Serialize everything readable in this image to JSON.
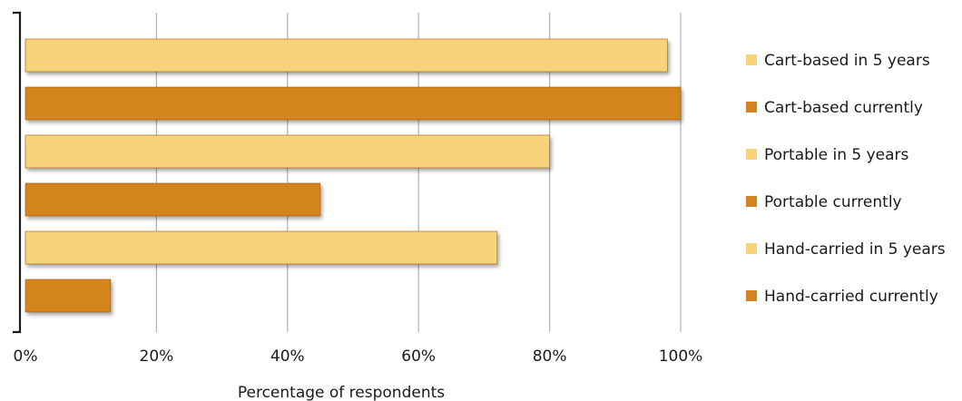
{
  "chart_data": {
    "type": "bar",
    "orientation": "horizontal",
    "categories": [
      "Cart-based in 5 years",
      "Cart-based currently",
      "Portable in 5 years",
      "Portable currently",
      "Hand-carried in 5 years",
      "Hand-carried currently"
    ],
    "values": [
      98,
      100,
      80,
      45,
      72,
      13
    ],
    "xlim": [
      0,
      100
    ],
    "xticks": [
      0,
      20,
      40,
      60,
      80,
      100
    ],
    "xtick_labels": [
      "0%",
      "20%",
      "40%",
      "60%",
      "80%",
      "100%"
    ],
    "xlabel": "Percentage of respondents",
    "ylabel": "",
    "title": "",
    "grid": "vertical",
    "legend_placement": "right",
    "legend": [
      {
        "label": "Cart-based in 5 years",
        "color": "#F7D47B"
      },
      {
        "label": "Cart-based currently",
        "color": "#D4841F"
      },
      {
        "label": "Portable in 5 years",
        "color": "#F7D47B"
      },
      {
        "label": "Portable currently",
        "color": "#D4841F"
      },
      {
        "label": "Hand-carried in 5 years",
        "color": "#F7D47B"
      },
      {
        "label": "Hand-carried currently",
        "color": "#D4841F"
      }
    ],
    "colors": {
      "light": "#F7D47B",
      "dark": "#D4841F",
      "grid": "#b0b0b0",
      "axis": "#1a1a1a"
    }
  }
}
